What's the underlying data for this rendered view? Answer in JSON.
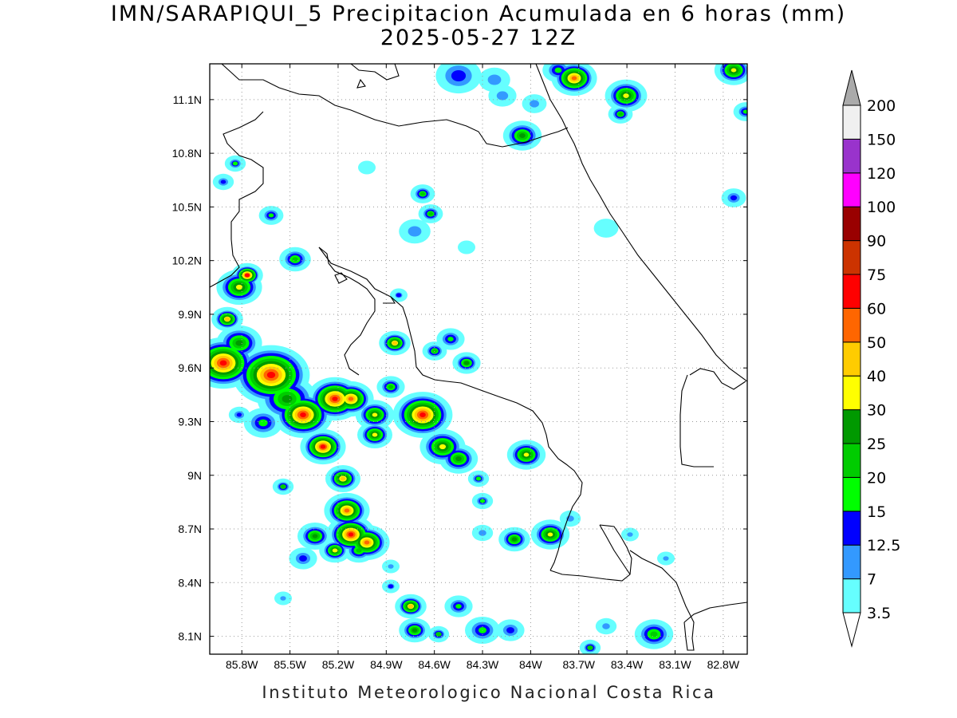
{
  "title": {
    "line1": "IMN/SARAPIQUI_5 Precipitacion Acumulada en 6 horas (mm)",
    "line2": "2025-05-27 12Z"
  },
  "footer": "Instituto Meteorologico Nacional Costa Rica",
  "map": {
    "extent": {
      "lon_min": -86.0,
      "lon_max": -82.65,
      "lat_min": 8.0,
      "lat_max": 11.3
    },
    "lon_ticks": [
      "85.8W",
      "85.5W",
      "85.2W",
      "84.9W",
      "84.6W",
      "84.3W",
      "84W",
      "83.7W",
      "83.4W",
      "83.1W",
      "82.8W"
    ],
    "lat_ticks": [
      "11.1N",
      "10.8N",
      "10.5N",
      "10.2N",
      "9.9N",
      "9.6N",
      "9.3N",
      "9N",
      "8.7N",
      "8.4N",
      "8.1N"
    ],
    "gridlines": true
  },
  "colorbar": {
    "labels": [
      "3.5",
      "7",
      "12.5",
      "15",
      "20",
      "25",
      "30",
      "40",
      "50",
      "60",
      "75",
      "90",
      "100",
      "120",
      "150",
      "200"
    ],
    "colors": [
      "#66ffff",
      "#3399ff",
      "#0000ff",
      "#00ff00",
      "#00cc00",
      "#009900",
      "#ffff00",
      "#ffcc00",
      "#ff6600",
      "#ff0000",
      "#cc3300",
      "#990000",
      "#ff00ff",
      "#9933cc",
      "#f0f0f0",
      "#aaaaaa"
    ]
  }
}
